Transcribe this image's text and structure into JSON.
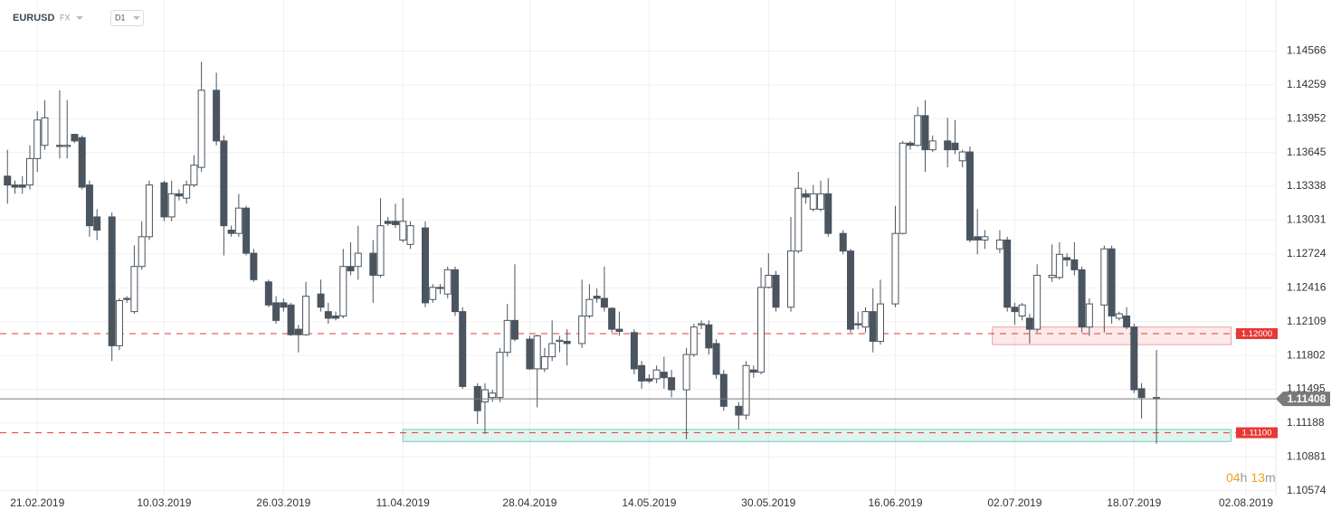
{
  "header": {
    "symbol": "EURUSD",
    "market": "FX",
    "timeframe": "D1"
  },
  "timer": {
    "hours": "04",
    "hours_unit": "h",
    "minutes": "13",
    "minutes_unit": "m"
  },
  "chart_data": {
    "type": "candlestick",
    "x": [
      "17.02.2019",
      "18.02.2019",
      "19.02.2019",
      "20.02.2019",
      "21.02.2019",
      "22.02.2019",
      "24.02.2019",
      "25.02.2019",
      "26.02.2019",
      "27.02.2019",
      "28.02.2019",
      "01.03.2019",
      "03.03.2019",
      "04.03.2019",
      "05.03.2019",
      "06.03.2019",
      "07.03.2019",
      "08.03.2019",
      "10.03.2019",
      "11.03.2019",
      "12.03.2019",
      "13.03.2019",
      "14.03.2019",
      "15.03.2019",
      "17.03.2019",
      "18.03.2019",
      "19.03.2019",
      "20.03.2019",
      "21.03.2019",
      "22.03.2019",
      "24.03.2019",
      "25.03.2019",
      "26.03.2019",
      "27.03.2019",
      "28.03.2019",
      "29.03.2019",
      "31.03.2019",
      "01.04.2019",
      "02.04.2019",
      "03.04.2019",
      "04.04.2019",
      "05.04.2019",
      "07.04.2019",
      "08.04.2019",
      "09.04.2019",
      "10.04.2019",
      "11.04.2019",
      "12.04.2019",
      "14.04.2019",
      "15.04.2019",
      "16.04.2019",
      "17.04.2019",
      "18.04.2019",
      "19.04.2019",
      "21.04.2019",
      "22.04.2019",
      "23.04.2019",
      "24.04.2019",
      "25.04.2019",
      "26.04.2019",
      "28.04.2019",
      "29.04.2019",
      "30.04.2019",
      "01.05.2019",
      "02.05.2019",
      "03.05.2019",
      "05.05.2019",
      "06.05.2019",
      "07.05.2019",
      "08.05.2019",
      "09.05.2019",
      "10.05.2019",
      "12.05.2019",
      "13.05.2019",
      "14.05.2019",
      "15.05.2019",
      "16.05.2019",
      "17.05.2019",
      "19.05.2019",
      "20.05.2019",
      "21.05.2019",
      "22.05.2019",
      "23.05.2019",
      "24.05.2019",
      "26.05.2019",
      "27.05.2019",
      "28.05.2019",
      "29.05.2019",
      "30.05.2019",
      "31.05.2019",
      "02.06.2019",
      "03.06.2019",
      "04.06.2019",
      "05.06.2019",
      "06.06.2019",
      "07.06.2019",
      "09.06.2019",
      "10.06.2019",
      "11.06.2019",
      "12.06.2019",
      "13.06.2019",
      "14.06.2019",
      "16.06.2019",
      "17.06.2019",
      "18.06.2019",
      "19.06.2019",
      "20.06.2019",
      "21.06.2019",
      "23.06.2019",
      "24.06.2019",
      "25.06.2019",
      "26.06.2019",
      "27.06.2019",
      "28.06.2019",
      "30.06.2019",
      "01.07.2019",
      "02.07.2019",
      "03.07.2019",
      "04.07.2019",
      "05.07.2019",
      "07.07.2019",
      "08.07.2019",
      "09.07.2019",
      "10.07.2019",
      "11.07.2019",
      "12.07.2019",
      "14.07.2019",
      "15.07.2019",
      "16.07.2019",
      "17.07.2019",
      "18.07.2019",
      "19.07.2019",
      "21.07.2019"
    ],
    "open": [
      1.1343,
      1.1335,
      1.1335,
      1.1335,
      1.1359,
      1.1371,
      1.1371,
      1.137,
      1.1381,
      1.1378,
      1.1335,
      1.1306,
      1.1306,
      1.1189,
      1.1232,
      1.122,
      1.1261,
      1.1288,
      1.1337,
      1.1306,
      1.1327,
      1.1323,
      1.1335,
      1.1351,
      1.1421,
      1.1375,
      1.1294,
      1.1291,
      1.1314,
      1.1273,
      1.1247,
      1.1228,
      1.1228,
      1.1226,
      1.1204,
      1.1199,
      1.1236,
      1.122,
      1.1216,
      1.1216,
      1.1261,
      1.1261,
      1.1273,
      1.1253,
      1.1302,
      1.1302,
      1.1285,
      1.1281,
      1.1296,
      1.1231,
      1.1242,
      1.1236,
      1.1258,
      1.122,
      1.1152,
      1.1138,
      1.1142,
      1.1142,
      1.1183,
      1.1212,
      1.1195,
      1.1168,
      1.1168,
      1.1179,
      1.1193,
      1.1193,
      1.1191,
      1.1216,
      1.1234,
      1.1232,
      1.1223,
      1.1204,
      1.1201,
      1.1171,
      1.1159,
      1.1159,
      1.1165,
      1.116,
      1.1149,
      1.1181,
      1.1208,
      1.1208,
      1.1191,
      1.1163,
      1.1134,
      1.1126,
      1.1167,
      1.1165,
      1.1242,
      1.1253,
      1.1224,
      1.1275,
      1.1327,
      1.1313,
      1.1313,
      1.1327,
      1.1291,
      1.1275,
      1.1209,
      1.1206,
      1.122,
      1.1193,
      1.1227,
      1.1291,
      1.1373,
      1.1371,
      1.1398,
      1.1367,
      1.1375,
      1.1373,
      1.1357,
      1.1365,
      1.1288,
      1.1285,
      1.1277,
      1.1285,
      1.1224,
      1.1216,
      1.1214,
      1.1204,
      1.1251,
      1.1251,
      1.1269,
      1.1267,
      1.1258,
      1.1206,
      1.1226,
      1.1277,
      1.1214,
      1.1216,
      1.1206,
      1.115,
      1.1142
    ],
    "high": [
      1.1367,
      1.1339,
      1.1343,
      1.1371,
      1.1402,
      1.1412,
      1.1421,
      1.1412,
      1.1381,
      1.138,
      1.1339,
      1.1313,
      1.131,
      1.1232,
      1.1234,
      1.128,
      1.1302,
      1.1339,
      1.1339,
      1.1339,
      1.1331,
      1.1339,
      1.1362,
      1.1447,
      1.1437,
      1.138,
      1.1298,
      1.1327,
      1.1316,
      1.1277,
      1.1249,
      1.1234,
      1.1232,
      1.1228,
      1.1208,
      1.1247,
      1.1249,
      1.1228,
      1.122,
      1.1277,
      1.1283,
      1.1298,
      1.1285,
      1.1323,
      1.1306,
      1.1318,
      1.1323,
      1.1302,
      1.1302,
      1.1245,
      1.1245,
      1.1261,
      1.1261,
      1.1224,
      1.1155,
      1.1155,
      1.1149,
      1.1187,
      1.1227,
      1.1263,
      1.1198,
      1.1199,
      1.1187,
      1.1212,
      1.1198,
      1.1204,
      1.1249,
      1.1245,
      1.1241,
      1.1261,
      1.1224,
      1.122,
      1.1204,
      1.1175,
      1.1163,
      1.1171,
      1.1179,
      1.1167,
      1.1187,
      1.1209,
      1.1212,
      1.1212,
      1.1195,
      1.1167,
      1.1138,
      1.1175,
      1.1171,
      1.126,
      1.1273,
      1.1257,
      1.1306,
      1.1347,
      1.1331,
      1.1335,
      1.1339,
      1.1341,
      1.1294,
      1.1277,
      1.122,
      1.1224,
      1.1241,
      1.1249,
      1.1316,
      1.1375,
      1.1375,
      1.1406,
      1.1412,
      1.138,
      1.1396,
      1.1394,
      1.1367,
      1.137,
      1.1313,
      1.1294,
      1.1294,
      1.1288,
      1.1228,
      1.1228,
      1.1218,
      1.1263,
      1.1281,
      1.1283,
      1.1273,
      1.1283,
      1.1261,
      1.1232,
      1.128,
      1.128,
      1.122,
      1.1224,
      1.1209,
      1.1155,
      1.1185
    ],
    "low": [
      1.1318,
      1.1327,
      1.1327,
      1.1331,
      1.1347,
      1.1367,
      1.1359,
      1.1359,
      1.1373,
      1.1331,
      1.1288,
      1.1285,
      1.1175,
      1.1185,
      1.1228,
      1.1218,
      1.1258,
      1.1285,
      1.1302,
      1.1302,
      1.1321,
      1.1318,
      1.1333,
      1.1347,
      1.1371,
      1.1271,
      1.1288,
      1.1288,
      1.1271,
      1.1247,
      1.1224,
      1.1209,
      1.122,
      1.1198,
      1.1183,
      1.1198,
      1.122,
      1.1209,
      1.1212,
      1.1214,
      1.1253,
      1.1249,
      1.1228,
      1.1251,
      1.1298,
      1.1296,
      1.1283,
      1.1277,
      1.1224,
      1.1228,
      1.1236,
      1.1232,
      1.1216,
      1.115,
      1.1118,
      1.1109,
      1.1138,
      1.1138,
      1.1179,
      1.1193,
      1.1167,
      1.1133,
      1.1165,
      1.1175,
      1.1183,
      1.1171,
      1.1187,
      1.1214,
      1.1228,
      1.122,
      1.1201,
      1.1198,
      1.1163,
      1.115,
      1.1155,
      1.1155,
      1.115,
      1.1142,
      1.1104,
      1.1179,
      1.1204,
      1.1181,
      1.1159,
      1.113,
      1.1113,
      1.1122,
      1.116,
      1.1163,
      1.1241,
      1.122,
      1.122,
      1.1273,
      1.1318,
      1.1311,
      1.1311,
      1.1288,
      1.1272,
      1.1201,
      1.1204,
      1.1201,
      1.1183,
      1.119,
      1.1224,
      1.129,
      1.1367,
      1.137,
      1.1347,
      1.1365,
      1.1351,
      1.1363,
      1.1351,
      1.1283,
      1.1272,
      1.1277,
      1.1273,
      1.122,
      1.1208,
      1.1212,
      1.1191,
      1.1201,
      1.1247,
      1.1249,
      1.1261,
      1.1253,
      1.1201,
      1.1198,
      1.1201,
      1.1209,
      1.1212,
      1.1204,
      1.1146,
      1.1123,
      1.11
    ],
    "close": [
      1.1335,
      1.1333,
      1.1333,
      1.1359,
      1.1394,
      1.1396,
      1.137,
      1.1371,
      1.1375,
      1.1333,
      1.1298,
      1.1294,
      1.1189,
      1.123,
      1.1231,
      1.1261,
      1.1288,
      1.1335,
      1.1306,
      1.1327,
      1.1325,
      1.1335,
      1.1353,
      1.1421,
      1.1375,
      1.1298,
      1.1291,
      1.1314,
      1.1273,
      1.1249,
      1.1226,
      1.1212,
      1.1224,
      1.1199,
      1.1199,
      1.1234,
      1.1224,
      1.1214,
      1.1214,
      1.1261,
      1.1257,
      1.1273,
      1.1253,
      1.1298,
      1.13,
      1.1299,
      1.1302,
      1.1298,
      1.1228,
      1.1242,
      1.1241,
      1.1258,
      1.122,
      1.1152,
      1.113,
      1.1149,
      1.1146,
      1.1183,
      1.1212,
      1.1195,
      1.1168,
      1.1198,
      1.1179,
      1.1191,
      1.1194,
      1.1191,
      1.1216,
      1.1231,
      1.1232,
      1.1224,
      1.1204,
      1.1202,
      1.1168,
      1.1157,
      1.1157,
      1.1167,
      1.116,
      1.1149,
      1.1181,
      1.1206,
      1.1209,
      1.1187,
      1.1163,
      1.1134,
      1.1126,
      1.1171,
      1.1165,
      1.1242,
      1.1253,
      1.1224,
      1.1275,
      1.1332,
      1.1324,
      1.1327,
      1.1327,
      1.1291,
      1.1275,
      1.1204,
      1.1208,
      1.122,
      1.1193,
      1.1227,
      1.1291,
      1.1373,
      1.1371,
      1.1398,
      1.1367,
      1.1375,
      1.1367,
      1.1367,
      1.1365,
      1.1285,
      1.1285,
      1.1288,
      1.1285,
      1.1224,
      1.122,
      1.1226,
      1.1204,
      1.1253,
      1.1253,
      1.1272,
      1.1267,
      1.1258,
      1.1206,
      1.1227,
      1.1277,
      1.1216,
      1.1218,
      1.1206,
      1.1149,
      1.1142,
      1.11408
    ],
    "up_color": "#ffffff",
    "down_color": "#4a555f",
    "wick_color": "#4a555f",
    "xlim": [
      "16.02.2019",
      "06.08.2019"
    ],
    "xticks": [
      "21.02.2019",
      "10.03.2019",
      "26.03.2019",
      "11.04.2019",
      "28.04.2019",
      "14.05.2019",
      "30.05.2019",
      "16.06.2019",
      "02.07.2019",
      "18.07.2019",
      "02.08.2019"
    ],
    "ylim": [
      1.1053,
      1.1503
    ],
    "yticks": [
      1.14566,
      1.14259,
      1.13952,
      1.13645,
      1.13338,
      1.13031,
      1.12724,
      1.12416,
      1.12109,
      1.11802,
      1.11495,
      1.11188,
      1.10881,
      1.10574
    ],
    "grid": true,
    "levels": [
      {
        "value": 1.12,
        "label": "1.12000",
        "color": "#e53935"
      },
      {
        "value": 1.111,
        "label": "1.11100",
        "color": "#e53935"
      }
    ],
    "zones": [
      {
        "start": "11.04.2019",
        "end": "31.07.2019",
        "low": 1.1102,
        "high": 1.1113,
        "color": "#2bb38a"
      },
      {
        "start": "29.06.2019",
        "end": "31.07.2019",
        "low": 1.119,
        "high": 1.1206,
        "color": "#e8696b"
      }
    ],
    "current_price": 1.11408,
    "current_color": "#7a7a7a",
    "timer_color": "#f0a020"
  }
}
